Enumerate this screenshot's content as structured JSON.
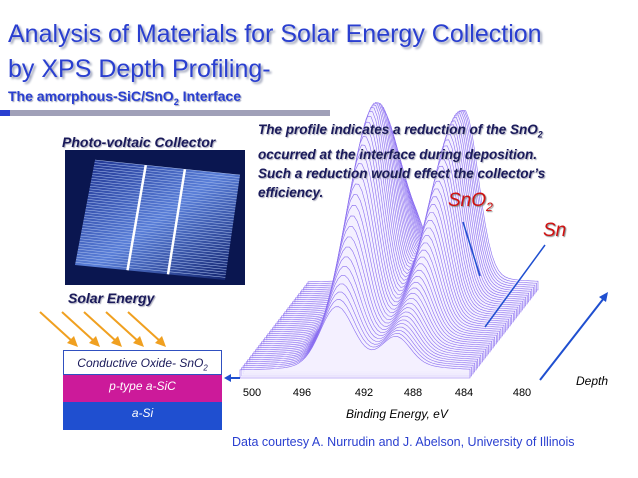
{
  "title": {
    "line1": "Analysis of Materials for Solar Energy Collection",
    "line2": "by XPS Depth Profiling-",
    "subtitle": {
      "main": "The  amorphous-SiC/SnO",
      "sub": "2",
      "rest": " Interface"
    }
  },
  "photo_label": "Photo-voltaic Collector",
  "note": {
    "line1": {
      "main": "The profile indicates a reduction of the SnO",
      "sub": "2"
    },
    "line2": "occurred at the interface during deposition.",
    "line3": "Such a reduction would effect the collector’s",
    "line4": "efficiency."
  },
  "solar_label": "Solar Energy",
  "layers": [
    {
      "main": "Conductive Oxide- SnO",
      "sub": "2"
    },
    {
      "main": "p-type a-SiC"
    },
    {
      "main": "a-Si"
    }
  ],
  "peak_labels": {
    "sno2": {
      "main": "SnO",
      "sub": "2"
    },
    "sn": "Sn"
  },
  "axis": {
    "ticks": [
      "500",
      "496",
      "492",
      "488",
      "484",
      "480"
    ],
    "x_label": "Binding Energy, eV",
    "depth_label": "Depth"
  },
  "credit": "Data courtesy A. Nurrudin and J. Abelson, University of Illinois"
}
